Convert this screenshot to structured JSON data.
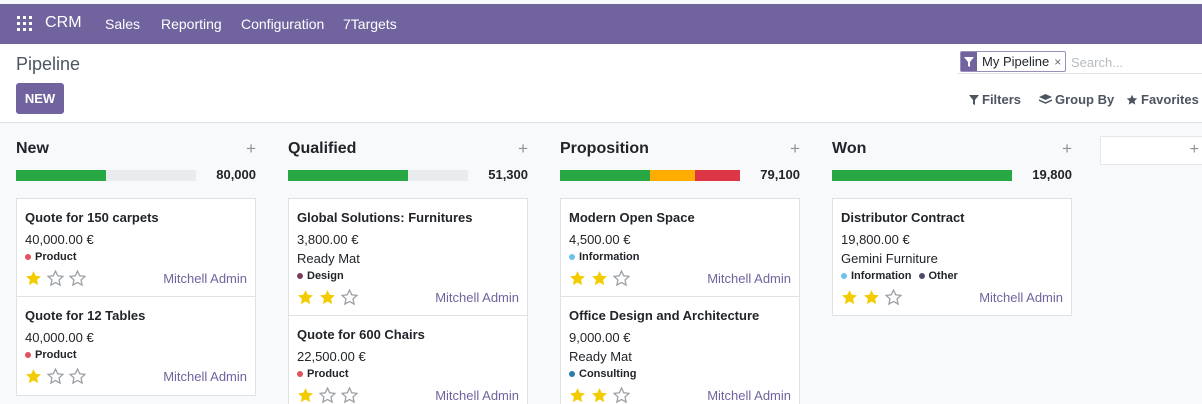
{
  "navbar": {
    "app_name": "CRM",
    "menu": [
      "Sales",
      "Reporting",
      "Configuration",
      "7Targets"
    ]
  },
  "control": {
    "breadcrumb": "Pipeline",
    "new_label": "NEW",
    "facet_label": "My Pipeline",
    "facet_close": "×",
    "search_placeholder": "Search...",
    "filters_label": "Filters",
    "groupby_label": "Group By",
    "favorites_label": "Favorites"
  },
  "columns": [
    {
      "title": "New",
      "add": "+",
      "total": "80,000",
      "progress": [
        {
          "color": "#28a745",
          "fraction": 0.5
        }
      ],
      "cards": [
        {
          "title": "Quote for 150 carpets",
          "amount": "40,000.00 €",
          "company": "",
          "tags": [
            {
              "label": "Product",
              "color": "#e0525c"
            }
          ],
          "stars": 1,
          "assignee": "Mitchell Admin"
        },
        {
          "title": "Quote for 12 Tables",
          "amount": "40,000.00 €",
          "company": "",
          "tags": [
            {
              "label": "Product",
              "color": "#e0525c"
            }
          ],
          "stars": 1,
          "assignee": "Mitchell Admin"
        }
      ]
    },
    {
      "title": "Qualified",
      "add": "+",
      "total": "51,300",
      "progress": [
        {
          "color": "#28a745",
          "fraction": 0.667
        }
      ],
      "cards": [
        {
          "title": "Global Solutions: Furnitures",
          "amount": "3,800.00 €",
          "company": "Ready Mat",
          "tags": [
            {
              "label": "Design",
              "color": "#7c3b5c"
            }
          ],
          "stars": 2,
          "assignee": "Mitchell Admin"
        },
        {
          "title": "Quote for 600 Chairs",
          "amount": "22,500.00 €",
          "company": "",
          "tags": [
            {
              "label": "Product",
              "color": "#e0525c"
            }
          ],
          "stars": 1,
          "assignee": "Mitchell Admin"
        }
      ]
    },
    {
      "title": "Proposition",
      "add": "+",
      "total": "79,100",
      "progress": [
        {
          "color": "#28a745",
          "fraction": 0.5
        },
        {
          "color": "#ffac00",
          "fraction": 0.25
        },
        {
          "color": "#dc3545",
          "fraction": 0.25
        }
      ],
      "cards": [
        {
          "title": "Modern Open Space",
          "amount": "4,500.00 €",
          "company": "",
          "tags": [
            {
              "label": "Information",
              "color": "#6cc1ed"
            }
          ],
          "stars": 2,
          "assignee": "Mitchell Admin"
        },
        {
          "title": "Office Design and Architecture",
          "amount": "9,000.00 €",
          "company": "Ready Mat",
          "tags": [
            {
              "label": "Consulting",
              "color": "#2c7cac"
            }
          ],
          "stars": 2,
          "assignee": "Mitchell Admin"
        }
      ]
    },
    {
      "title": "Won",
      "add": "+",
      "total": "19,800",
      "progress": [
        {
          "color": "#28a745",
          "fraction": 1
        }
      ],
      "cards": [
        {
          "title": "Distributor Contract",
          "amount": "19,800.00 €",
          "company": "Gemini Furniture",
          "tags": [
            {
              "label": "Information",
              "color": "#6cc1ed"
            },
            {
              "label": "Other",
              "color": "#4c4c6b"
            }
          ],
          "stars": 2,
          "assignee": "Mitchell Admin"
        }
      ]
    }
  ],
  "ghost_add": "+",
  "colors": {
    "brand": "#71639e",
    "star_on": "#f3cc00",
    "star_off": "#9aa0a6"
  }
}
